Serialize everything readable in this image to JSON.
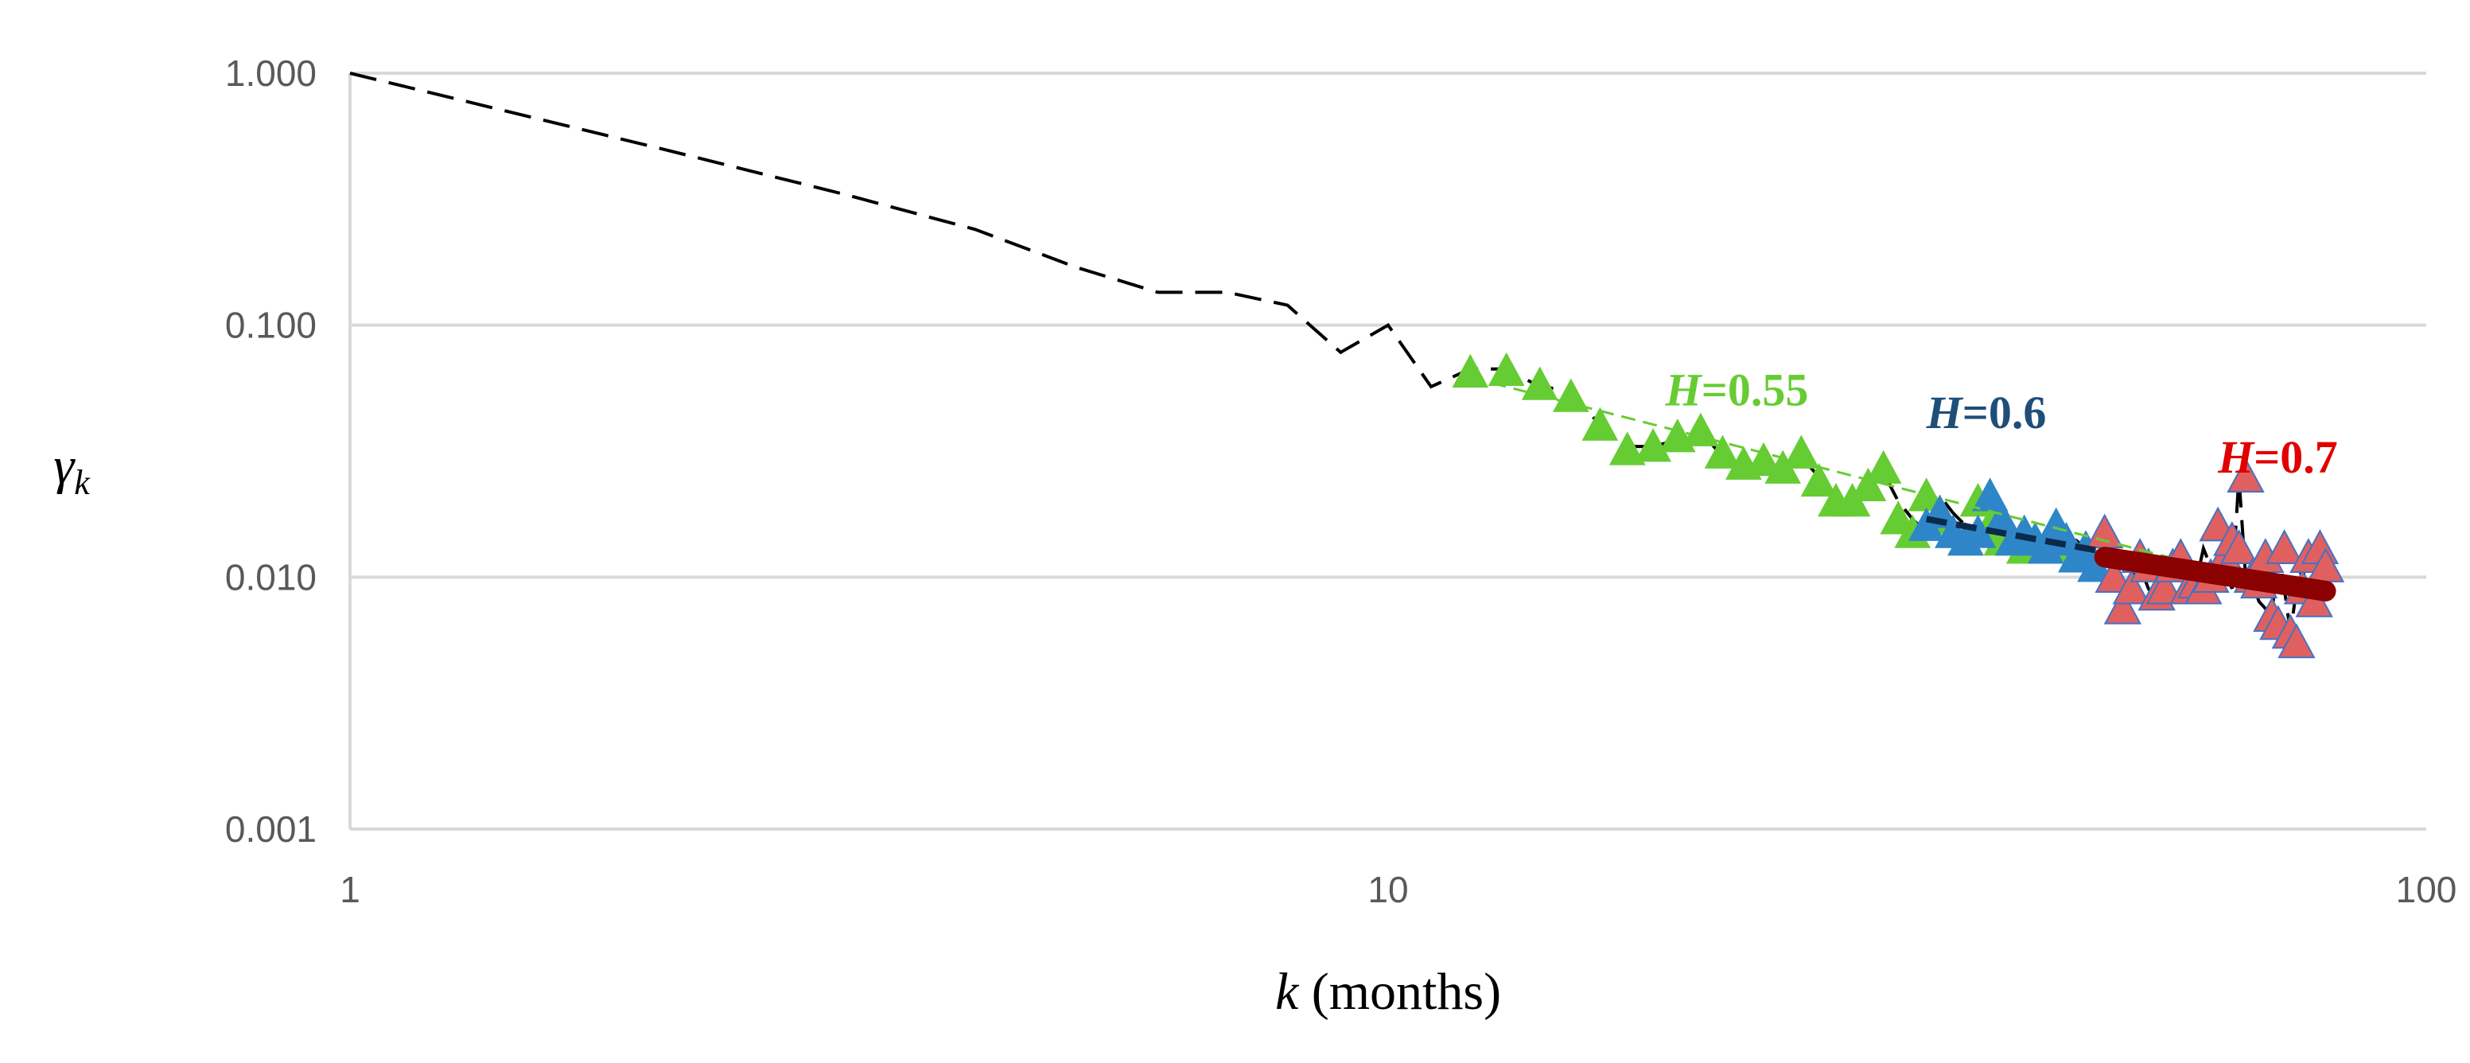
{
  "chart_data": {
    "type": "scatter",
    "xscale": "log",
    "yscale": "log",
    "xlim": [
      1,
      100
    ],
    "ylim": [
      0.001,
      1
    ],
    "grid": true,
    "xlabel": {
      "var": "k",
      "unit": "(months)"
    },
    "ylabel": {
      "main": "γ",
      "sub": "k"
    },
    "x_ticks": [
      "1",
      "10",
      "100"
    ],
    "x_tick_values": [
      1,
      10,
      100
    ],
    "y_ticks": [
      "0.001",
      "0.010",
      "0.100",
      "1.000"
    ],
    "y_tick_values": [
      0.001,
      0.01,
      0.1,
      1
    ],
    "empirical_line": {
      "style": "dashed",
      "color": "#000000",
      "x": [
        1,
        2,
        3,
        4,
        5,
        6,
        7,
        8,
        9,
        10,
        11,
        12,
        13,
        14,
        15,
        16,
        17,
        18,
        19,
        20,
        21,
        22,
        23,
        24,
        25,
        26,
        27,
        28,
        29,
        30,
        31,
        32,
        33,
        34,
        35,
        36,
        37,
        38,
        39,
        40,
        41,
        42,
        43,
        44,
        45,
        46,
        47,
        48,
        49,
        50,
        51,
        52,
        53,
        54,
        55,
        56,
        57,
        58,
        59,
        60,
        61,
        62,
        63,
        64,
        65,
        66,
        67,
        68,
        69,
        70,
        71,
        72,
        73,
        74,
        75,
        76,
        77,
        78,
        79,
        80
      ],
      "y": [
        1.0,
        0.5,
        0.33,
        0.24,
        0.17,
        0.135,
        0.135,
        0.12,
        0.078,
        0.1,
        0.057,
        0.067,
        0.067,
        0.057,
        0.055,
        0.04,
        0.033,
        0.033,
        0.035,
        0.038,
        0.03,
        0.028,
        0.029,
        0.027,
        0.03,
        0.025,
        0.02,
        0.02,
        0.023,
        0.026,
        0.02,
        0.017,
        0.015,
        0.021,
        0.018,
        0.016,
        0.014,
        0.02,
        0.017,
        0.015,
        0.014,
        0.015,
        0.013,
        0.015,
        0.014,
        0.014,
        0.013,
        0.011,
        0.012,
        0.011,
        0.008,
        0.01,
        0.011,
        0.009,
        0.008,
        0.009,
        0.01,
        0.0085,
        0.009,
        0.0095,
        0.013,
        0.011,
        0.012,
        0.0105,
        0.009,
        0.025,
        0.01,
        0.0095,
        0.008,
        0.0075,
        0.007,
        0.013,
        0.009,
        0.006,
        0.009,
        0.011,
        0.008,
        0.0085,
        0.013,
        0.009
      ]
    },
    "series": [
      {
        "name": "H=0.55",
        "color": "#66cc33",
        "marker": "triangle",
        "x": [
          12,
          13,
          14,
          15,
          16,
          17,
          18,
          19,
          20,
          21,
          22,
          23,
          24,
          25,
          26,
          27,
          28,
          29,
          30,
          31,
          32,
          33,
          34,
          35,
          36,
          37,
          38,
          39,
          40,
          41,
          42,
          43,
          44
        ],
        "y": [
          0.065,
          0.066,
          0.058,
          0.052,
          0.04,
          0.032,
          0.033,
          0.036,
          0.038,
          0.031,
          0.028,
          0.029,
          0.027,
          0.031,
          0.024,
          0.02,
          0.02,
          0.023,
          0.027,
          0.017,
          0.015,
          0.021,
          0.017,
          0.015,
          0.014,
          0.02,
          0.016,
          0.014,
          0.014,
          0.013,
          0.014,
          0.013,
          0.013
        ],
        "fit": {
          "x": [
            12,
            80
          ],
          "y": [
            0.062,
            0.0083
          ],
          "color": "#66cc33",
          "width": 3,
          "style": "dashed"
        }
      },
      {
        "name": "H=0.6",
        "color": "#2e86c8",
        "marker": "triangle",
        "x": [
          33,
          34,
          35,
          36,
          37,
          38,
          39,
          40,
          41,
          42,
          43,
          44,
          45,
          46,
          47,
          48
        ],
        "y": [
          0.016,
          0.018,
          0.015,
          0.014,
          0.015,
          0.021,
          0.017,
          0.014,
          0.015,
          0.014,
          0.013,
          0.016,
          0.014,
          0.012,
          0.013,
          0.011
        ],
        "fit": {
          "x": [
            33,
            80
          ],
          "y": [
            0.017,
            0.0087
          ],
          "color": "#0b2a4a",
          "width": 8,
          "style": "dashed"
        }
      },
      {
        "name": "H=0.7",
        "color": "#e06060",
        "marker": "triangle",
        "x": [
          49,
          50,
          51,
          52,
          53,
          54,
          55,
          56,
          57,
          58,
          59,
          60,
          61,
          62,
          63,
          64,
          65,
          66,
          67,
          68,
          69,
          70,
          71,
          72,
          73,
          74,
          75,
          76,
          77,
          78,
          79,
          80
        ],
        "y": [
          0.015,
          0.01,
          0.0075,
          0.009,
          0.012,
          0.011,
          0.0085,
          0.009,
          0.011,
          0.012,
          0.009,
          0.0095,
          0.009,
          0.01,
          0.016,
          0.012,
          0.014,
          0.013,
          0.025,
          0.01,
          0.0095,
          0.012,
          0.007,
          0.0065,
          0.013,
          0.006,
          0.0055,
          0.009,
          0.012,
          0.008,
          0.013,
          0.011
        ],
        "fit": {
          "x": [
            49,
            80
          ],
          "y": [
            0.012,
            0.0088
          ],
          "color": "#8b0000",
          "width": 26,
          "style": "solid"
        }
      }
    ],
    "annotations": [
      {
        "var": "H",
        "text": "=0.55",
        "color": "#66cc33",
        "x": 18.5,
        "y": 0.048
      },
      {
        "var": "H",
        "text": "=0.6",
        "color": "#1f4e79",
        "x": 33,
        "y": 0.039
      },
      {
        "var": "H",
        "text": "=0.7",
        "color": "#e00000",
        "x": 63,
        "y": 0.026
      }
    ]
  }
}
